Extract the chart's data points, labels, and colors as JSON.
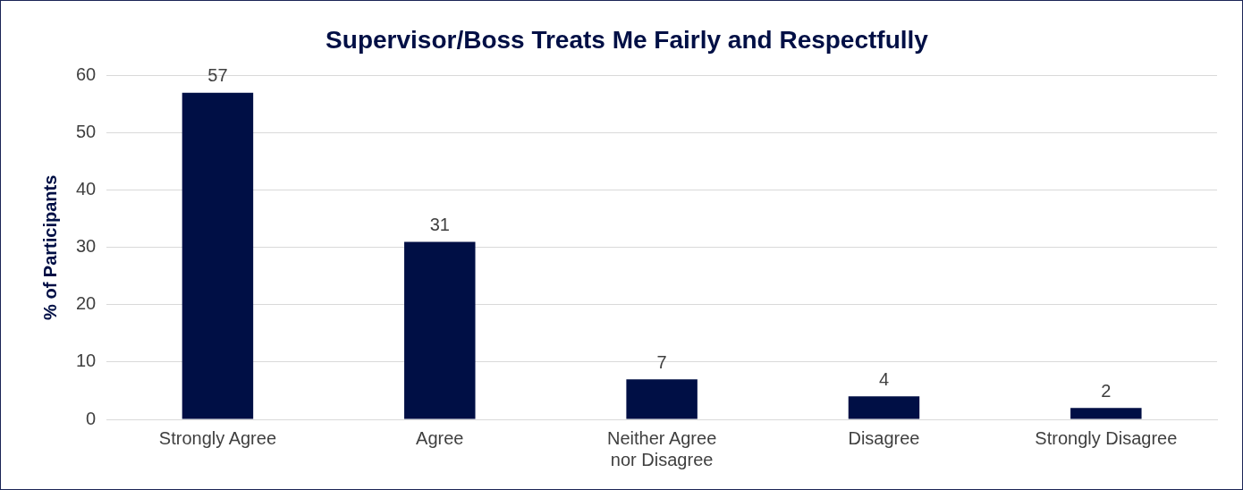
{
  "chart_data": {
    "type": "bar",
    "title": "Supervisor/Boss Treats Me Fairly and Respectfully",
    "ylabel": "% of Participants",
    "categories": [
      "Strongly Agree",
      "Agree",
      "Neither Agree nor Disagree",
      "Disagree",
      "Strongly Disagree"
    ],
    "values": [
      57,
      31,
      7,
      4,
      2
    ],
    "color": "#000f45",
    "ylim": [
      0,
      60
    ],
    "yticks": [
      0,
      10,
      20,
      30,
      40,
      50,
      60
    ],
    "grid": "y",
    "legend": false,
    "data_labels": true
  }
}
